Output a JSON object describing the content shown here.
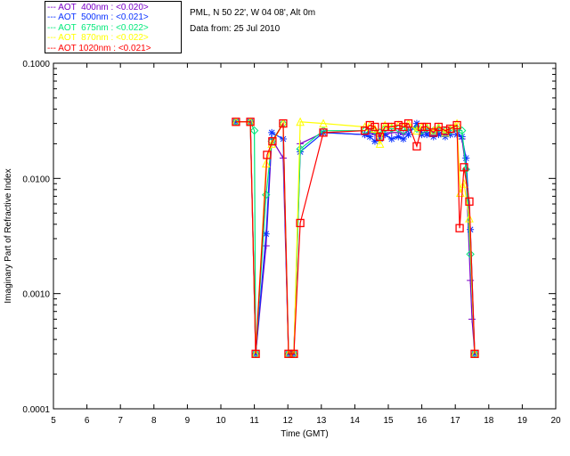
{
  "header": {
    "site": "PML, N 50 22', W 04 08', Alt 0m",
    "date": "Data from: 25 Jul 2010"
  },
  "chart_data": {
    "type": "scatter",
    "xlabel": "Time (GMT)",
    "ylabel": "Imaginary Part of Refractive Index",
    "xlim": [
      5,
      20
    ],
    "ylim": [
      0.0001,
      0.1
    ],
    "yscale": "log",
    "xticks": [
      "5",
      "6",
      "7",
      "8",
      "9",
      "10",
      "11",
      "12",
      "13",
      "14",
      "15",
      "16",
      "17",
      "18",
      "19",
      "20"
    ],
    "yticks": [
      "0.1000",
      "0.0100",
      "0.0010",
      "0.0001"
    ],
    "legend_position": "top-left outside",
    "series": [
      {
        "name": "AOT  400nm : <0.020>",
        "color": "#7a00c8",
        "marker": "plus",
        "points": [
          [
            10.45,
            0.031
          ],
          [
            10.88,
            0.031
          ],
          [
            11.04,
            0.0003
          ],
          [
            11.35,
            0.0026
          ],
          [
            11.52,
            0.022
          ],
          [
            11.86,
            0.015
          ],
          [
            12.02,
            0.0003
          ],
          [
            12.18,
            0.0003
          ],
          [
            12.37,
            0.02
          ],
          [
            13.06,
            0.025
          ],
          [
            14.3,
            0.024
          ],
          [
            14.45,
            0.025
          ],
          [
            14.6,
            0.024
          ],
          [
            14.75,
            0.023
          ],
          [
            14.9,
            0.024
          ],
          [
            15.1,
            0.025
          ],
          [
            15.3,
            0.025
          ],
          [
            15.45,
            0.024
          ],
          [
            15.6,
            0.026
          ],
          [
            15.85,
            0.028
          ],
          [
            16.0,
            0.025
          ],
          [
            16.15,
            0.025
          ],
          [
            16.35,
            0.024
          ],
          [
            16.5,
            0.025
          ],
          [
            16.7,
            0.024
          ],
          [
            16.85,
            0.025
          ],
          [
            17.05,
            0.026
          ],
          [
            17.2,
            0.022
          ],
          [
            17.32,
            0.012
          ],
          [
            17.45,
            0.0013
          ],
          [
            17.5,
            0.0006
          ],
          [
            17.58,
            0.0003
          ]
        ]
      },
      {
        "name": "AOT  500nm : <0.021>",
        "color": "#0a32ff",
        "marker": "asterisk",
        "points": [
          [
            10.45,
            0.031
          ],
          [
            10.88,
            0.031
          ],
          [
            11.04,
            0.0003
          ],
          [
            11.35,
            0.0033
          ],
          [
            11.52,
            0.025
          ],
          [
            11.86,
            0.022
          ],
          [
            12.02,
            0.0003
          ],
          [
            12.18,
            0.0003
          ],
          [
            12.37,
            0.017
          ],
          [
            13.06,
            0.025
          ],
          [
            14.3,
            0.024
          ],
          [
            14.45,
            0.023
          ],
          [
            14.6,
            0.021
          ],
          [
            14.75,
            0.022
          ],
          [
            14.9,
            0.024
          ],
          [
            15.1,
            0.022
          ],
          [
            15.3,
            0.023
          ],
          [
            15.45,
            0.022
          ],
          [
            15.6,
            0.024
          ],
          [
            15.85,
            0.03
          ],
          [
            16.0,
            0.024
          ],
          [
            16.15,
            0.024
          ],
          [
            16.35,
            0.023
          ],
          [
            16.5,
            0.024
          ],
          [
            16.7,
            0.023
          ],
          [
            16.85,
            0.024
          ],
          [
            17.05,
            0.024
          ],
          [
            17.2,
            0.023
          ],
          [
            17.32,
            0.015
          ],
          [
            17.45,
            0.0036
          ],
          [
            17.58,
            0.0003
          ]
        ]
      },
      {
        "name": "AOT  675nm : <0.022>",
        "color": "#00e87a",
        "marker": "diamond",
        "points": [
          [
            10.45,
            0.031
          ],
          [
            10.88,
            0.031
          ],
          [
            11.0,
            0.026
          ],
          [
            11.04,
            0.0003
          ],
          [
            11.35,
            0.0072
          ],
          [
            11.52,
            0.021
          ],
          [
            11.86,
            0.03
          ],
          [
            12.02,
            0.0003
          ],
          [
            12.18,
            0.0003
          ],
          [
            12.37,
            0.018
          ],
          [
            13.06,
            0.026
          ],
          [
            14.3,
            0.026
          ],
          [
            14.45,
            0.027
          ],
          [
            14.6,
            0.026
          ],
          [
            14.75,
            0.025
          ],
          [
            14.9,
            0.027
          ],
          [
            15.1,
            0.027
          ],
          [
            15.3,
            0.027
          ],
          [
            15.45,
            0.026
          ],
          [
            15.6,
            0.028
          ],
          [
            15.85,
            0.027
          ],
          [
            16.0,
            0.026
          ],
          [
            16.15,
            0.027
          ],
          [
            16.35,
            0.026
          ],
          [
            16.5,
            0.027
          ],
          [
            16.7,
            0.026
          ],
          [
            16.85,
            0.026
          ],
          [
            17.05,
            0.027
          ],
          [
            17.2,
            0.026
          ],
          [
            17.32,
            0.012
          ],
          [
            17.45,
            0.0022
          ],
          [
            17.58,
            0.0003
          ]
        ]
      },
      {
        "name": "AOT  870nm : <0.022>",
        "color": "#ffff00",
        "marker": "triangle",
        "points": [
          [
            10.45,
            0.031
          ],
          [
            10.88,
            0.031
          ],
          [
            11.04,
            0.0003
          ],
          [
            11.35,
            0.0135
          ],
          [
            11.52,
            0.02
          ],
          [
            11.86,
            0.03
          ],
          [
            12.02,
            0.0003
          ],
          [
            12.18,
            0.0003
          ],
          [
            12.37,
            0.031
          ],
          [
            13.06,
            0.03
          ],
          [
            14.3,
            0.028
          ],
          [
            14.45,
            0.029
          ],
          [
            14.6,
            0.027
          ],
          [
            14.75,
            0.02
          ],
          [
            14.9,
            0.029
          ],
          [
            15.1,
            0.028
          ],
          [
            15.3,
            0.029
          ],
          [
            15.45,
            0.028
          ],
          [
            15.6,
            0.03
          ],
          [
            15.85,
            0.026
          ],
          [
            16.0,
            0.028
          ],
          [
            16.15,
            0.028
          ],
          [
            16.35,
            0.026
          ],
          [
            16.5,
            0.028
          ],
          [
            16.7,
            0.025
          ],
          [
            16.85,
            0.027
          ],
          [
            17.05,
            0.03
          ],
          [
            17.15,
            0.0075
          ],
          [
            17.26,
            0.009
          ],
          [
            17.42,
            0.0045
          ],
          [
            17.58,
            0.0003
          ]
        ]
      },
      {
        "name": "AOT 1020nm : <0.021>",
        "color": "#ff0000",
        "marker": "square",
        "points": [
          [
            10.45,
            0.031
          ],
          [
            10.88,
            0.031
          ],
          [
            11.04,
            0.0003
          ],
          [
            11.38,
            0.016
          ],
          [
            11.54,
            0.021
          ],
          [
            11.86,
            0.03
          ],
          [
            12.02,
            0.0003
          ],
          [
            12.18,
            0.0003
          ],
          [
            12.37,
            0.0041
          ],
          [
            13.06,
            0.025
          ],
          [
            14.3,
            0.026
          ],
          [
            14.45,
            0.029
          ],
          [
            14.6,
            0.028
          ],
          [
            14.75,
            0.023
          ],
          [
            14.9,
            0.028
          ],
          [
            15.1,
            0.028
          ],
          [
            15.3,
            0.029
          ],
          [
            15.45,
            0.028
          ],
          [
            15.6,
            0.03
          ],
          [
            15.85,
            0.019
          ],
          [
            16.0,
            0.028
          ],
          [
            16.15,
            0.028
          ],
          [
            16.35,
            0.025
          ],
          [
            16.5,
            0.028
          ],
          [
            16.7,
            0.026
          ],
          [
            16.85,
            0.027
          ],
          [
            17.05,
            0.029
          ],
          [
            17.13,
            0.0037
          ],
          [
            17.26,
            0.0125
          ],
          [
            17.42,
            0.0063
          ],
          [
            17.58,
            0.0003
          ]
        ]
      }
    ]
  }
}
